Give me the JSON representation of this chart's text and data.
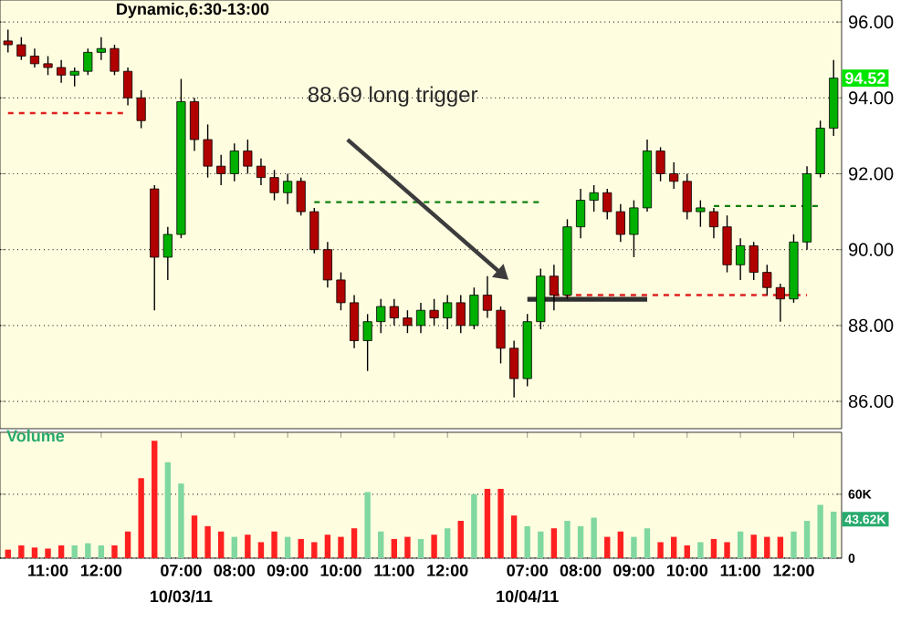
{
  "chart_data": [
    {
      "type": "candlestick",
      "title": "Dynamic,6:30-13:00",
      "categories": [
        null,
        null,
        null,
        null,
        null,
        null,
        null,
        null,
        null,
        null,
        null,
        null,
        null,
        null,
        null,
        null,
        null,
        null,
        null,
        null,
        null,
        null,
        null,
        null,
        null,
        null,
        null,
        null,
        null,
        null,
        null,
        null,
        null,
        null,
        null,
        null,
        null,
        null,
        null,
        null,
        null,
        null,
        null,
        null,
        null,
        null,
        null,
        null,
        null,
        null,
        null,
        null,
        null,
        null,
        null,
        null,
        null,
        null,
        null,
        null,
        null,
        null,
        null
      ],
      "ohlc": [
        [
          95.5,
          95.8,
          95.2,
          95.4
        ],
        [
          95.4,
          95.6,
          95.0,
          95.1
        ],
        [
          95.1,
          95.3,
          94.8,
          94.9
        ],
        [
          94.9,
          95.1,
          94.6,
          94.8
        ],
        [
          94.8,
          95.0,
          94.4,
          94.6
        ],
        [
          94.6,
          94.8,
          94.3,
          94.7
        ],
        [
          94.7,
          95.3,
          94.6,
          95.2
        ],
        [
          95.2,
          95.6,
          95.0,
          95.3
        ],
        [
          95.3,
          95.4,
          94.6,
          94.7
        ],
        [
          94.7,
          94.8,
          93.8,
          94.0
        ],
        [
          94.0,
          94.2,
          93.2,
          93.4
        ],
        [
          91.6,
          91.7,
          88.4,
          89.8
        ],
        [
          89.8,
          90.6,
          89.2,
          90.4
        ],
        [
          90.4,
          94.5,
          90.3,
          93.9
        ],
        [
          93.9,
          94.0,
          92.6,
          92.9
        ],
        [
          92.9,
          93.3,
          91.9,
          92.2
        ],
        [
          92.2,
          92.5,
          91.7,
          92.0
        ],
        [
          92.0,
          92.8,
          91.8,
          92.6
        ],
        [
          92.6,
          92.9,
          92.0,
          92.2
        ],
        [
          92.2,
          92.4,
          91.7,
          91.9
        ],
        [
          91.9,
          92.1,
          91.3,
          91.5
        ],
        [
          91.5,
          92.0,
          91.2,
          91.8
        ],
        [
          91.8,
          91.9,
          90.9,
          91.0
        ],
        [
          91.0,
          91.1,
          89.9,
          90.0
        ],
        [
          90.0,
          90.2,
          89.0,
          89.2
        ],
        [
          89.2,
          89.4,
          88.4,
          88.6
        ],
        [
          88.6,
          88.8,
          87.4,
          87.6
        ],
        [
          87.6,
          88.3,
          86.8,
          88.1
        ],
        [
          88.1,
          88.7,
          87.8,
          88.5
        ],
        [
          88.5,
          88.7,
          88.0,
          88.2
        ],
        [
          88.2,
          88.4,
          87.8,
          88.0
        ],
        [
          88.0,
          88.6,
          87.8,
          88.4
        ],
        [
          88.4,
          88.7,
          88.0,
          88.2
        ],
        [
          88.2,
          88.8,
          87.9,
          88.6
        ],
        [
          88.6,
          88.8,
          87.8,
          88.0
        ],
        [
          88.0,
          89.0,
          87.9,
          88.8
        ],
        [
          88.8,
          89.3,
          88.2,
          88.4
        ],
        [
          88.4,
          88.5,
          87.0,
          87.4
        ],
        [
          87.4,
          87.6,
          86.1,
          86.6
        ],
        [
          86.6,
          88.3,
          86.4,
          88.1
        ],
        [
          88.1,
          89.5,
          87.9,
          89.3
        ],
        [
          89.3,
          89.6,
          88.4,
          88.8
        ],
        [
          88.8,
          90.8,
          88.7,
          90.6
        ],
        [
          90.6,
          91.6,
          90.3,
          91.3
        ],
        [
          91.3,
          91.7,
          91.0,
          91.5
        ],
        [
          91.5,
          91.6,
          90.8,
          91.0
        ],
        [
          91.0,
          91.2,
          90.2,
          90.4
        ],
        [
          90.4,
          91.3,
          89.8,
          91.1
        ],
        [
          91.1,
          92.9,
          91.0,
          92.6
        ],
        [
          92.6,
          92.7,
          91.8,
          92.0
        ],
        [
          92.0,
          92.3,
          91.6,
          91.8
        ],
        [
          91.8,
          92.0,
          90.8,
          91.0
        ],
        [
          91.0,
          91.3,
          90.6,
          91.1
        ],
        [
          91.0,
          91.1,
          90.3,
          90.6
        ],
        [
          90.6,
          90.9,
          89.4,
          89.6
        ],
        [
          89.6,
          90.3,
          89.2,
          90.1
        ],
        [
          90.1,
          90.2,
          89.2,
          89.4
        ],
        [
          89.4,
          89.6,
          88.8,
          89.0
        ],
        [
          89.0,
          89.1,
          88.1,
          88.7
        ],
        [
          88.7,
          90.4,
          88.6,
          90.2
        ],
        [
          90.2,
          92.2,
          90.0,
          92.0
        ],
        [
          92.0,
          93.4,
          91.9,
          93.2
        ],
        [
          93.2,
          95.0,
          93.0,
          94.52
        ]
      ],
      "colors": [
        "#b00000",
        "#b00000",
        "#b00000",
        "#b00000",
        "#b00000",
        "#00b000",
        "#00b000",
        "#00b000",
        "#b00000",
        "#b00000",
        "#b00000",
        "#b00000",
        "#00b000",
        "#00b000",
        "#b00000",
        "#b00000",
        "#b00000",
        "#00b000",
        "#b00000",
        "#b00000",
        "#b00000",
        "#00b000",
        "#b00000",
        "#b00000",
        "#b00000",
        "#b00000",
        "#b00000",
        "#00b000",
        "#00b000",
        "#b00000",
        "#b00000",
        "#00b000",
        "#b00000",
        "#00b000",
        "#b00000",
        "#00b000",
        "#b00000",
        "#b00000",
        "#b00000",
        "#00b000",
        "#00b000",
        "#b00000",
        "#00b000",
        "#00b000",
        "#00b000",
        "#b00000",
        "#b00000",
        "#00b000",
        "#00b000",
        "#b00000",
        "#b00000",
        "#b00000",
        "#00b000",
        "#b00000",
        "#b00000",
        "#00b000",
        "#b00000",
        "#b00000",
        "#b00000",
        "#00b000",
        "#00b000",
        "#00b000",
        "#00b000"
      ],
      "series": [
        {
          "type": "line",
          "color": "#e02020",
          "line_style": "dashed",
          "values": [
            93.6,
            93.6,
            93.6,
            93.6,
            93.6,
            93.6,
            93.6,
            93.6,
            93.6,
            93.6,
            null,
            null,
            null,
            null,
            null,
            null,
            null,
            null,
            null,
            null,
            null,
            null,
            null,
            null,
            null,
            null,
            null,
            null,
            null,
            null,
            null,
            null,
            null,
            null,
            null,
            null,
            null,
            null,
            null,
            null,
            null,
            null,
            null,
            null,
            null,
            null,
            null,
            null,
            null,
            null,
            null,
            null,
            null,
            null,
            null,
            null,
            null,
            null,
            null,
            null,
            null,
            null,
            null
          ]
        },
        {
          "type": "line",
          "color": "#108010",
          "line_style": "dashed",
          "values": [
            null,
            null,
            null,
            null,
            null,
            null,
            null,
            null,
            null,
            null,
            null,
            null,
            null,
            null,
            null,
            null,
            null,
            null,
            null,
            null,
            null,
            null,
            null,
            91.25,
            91.25,
            91.25,
            91.25,
            91.25,
            91.25,
            91.25,
            91.25,
            91.25,
            91.25,
            91.25,
            91.25,
            91.25,
            91.25,
            91.25,
            91.25,
            91.25,
            91.25,
            null,
            null,
            null,
            null,
            null,
            null,
            null,
            null,
            null,
            null,
            null,
            null,
            null,
            null,
            null,
            null,
            null,
            null,
            null,
            null,
            null,
            null
          ]
        },
        {
          "type": "line",
          "color": "#e02020",
          "line_style": "dashed",
          "values": [
            null,
            null,
            null,
            null,
            null,
            null,
            null,
            null,
            null,
            null,
            null,
            null,
            null,
            null,
            null,
            null,
            null,
            null,
            null,
            null,
            null,
            null,
            null,
            null,
            null,
            null,
            null,
            null,
            null,
            null,
            null,
            null,
            null,
            null,
            null,
            null,
            null,
            null,
            null,
            null,
            null,
            88.8,
            88.8,
            88.8,
            88.8,
            88.8,
            88.8,
            88.8,
            88.8,
            88.8,
            88.8,
            88.8,
            88.8,
            88.8,
            88.8,
            88.8,
            88.8,
            88.8,
            88.8,
            88.8,
            88.8,
            null,
            null
          ]
        },
        {
          "type": "line",
          "color": "#108010",
          "line_style": "dashed",
          "values": [
            null,
            null,
            null,
            null,
            null,
            null,
            null,
            null,
            null,
            null,
            null,
            null,
            null,
            null,
            null,
            null,
            null,
            null,
            null,
            null,
            null,
            null,
            null,
            null,
            null,
            null,
            null,
            null,
            null,
            null,
            null,
            null,
            null,
            null,
            null,
            null,
            null,
            null,
            null,
            null,
            null,
            null,
            null,
            null,
            null,
            null,
            null,
            null,
            null,
            null,
            null,
            null,
            null,
            91.15,
            91.15,
            91.15,
            91.15,
            91.15,
            91.15,
            91.15,
            91.15,
            91.15,
            null
          ]
        },
        {
          "type": "line",
          "color": "#303030",
          "line_style": "solid",
          "values": [
            null,
            null,
            null,
            null,
            null,
            null,
            null,
            null,
            null,
            null,
            null,
            null,
            null,
            null,
            null,
            null,
            null,
            null,
            null,
            null,
            null,
            null,
            null,
            null,
            null,
            null,
            null,
            null,
            null,
            null,
            null,
            null,
            null,
            null,
            null,
            null,
            null,
            null,
            null,
            88.69,
            88.69,
            88.69,
            88.69,
            88.69,
            88.69,
            88.69,
            88.69,
            88.69,
            88.69,
            null,
            null,
            null,
            null,
            null,
            null,
            null,
            null,
            null,
            null,
            null,
            null,
            null,
            null
          ]
        }
      ],
      "ylim": [
        85.28,
        96.58
      ],
      "yticks": [
        {
          "value": 86,
          "label": "86.00"
        },
        {
          "value": 88,
          "label": "88.00"
        },
        {
          "value": 90,
          "label": "90.00"
        },
        {
          "value": 92,
          "label": "92.00"
        },
        {
          "value": 94,
          "label": "94.00"
        },
        {
          "value": 96,
          "label": "96.00"
        }
      ],
      "grid": "y",
      "tick_labels": "y",
      "annotations": [
        "88.69 long trigger",
        {
          "text": "94.52",
          "y": 94.52
        }
      ]
    },
    {
      "type": "bar",
      "title": "Volume",
      "categories": [
        null,
        null,
        null,
        "11:00",
        null,
        null,
        null,
        "12:00",
        null,
        null,
        null,
        null,
        null,
        "07:00",
        null,
        null,
        null,
        "08:00",
        null,
        null,
        null,
        "09:00",
        null,
        null,
        null,
        "10:00",
        null,
        null,
        null,
        "11:00",
        null,
        null,
        null,
        "12:00",
        null,
        null,
        null,
        null,
        null,
        "07:00",
        null,
        null,
        null,
        "08:00",
        null,
        null,
        null,
        "09:00",
        null,
        null,
        null,
        "10:00",
        null,
        null,
        null,
        "11:00",
        null,
        null,
        null,
        "12:00",
        null,
        null,
        null
      ],
      "values": [
        8000,
        12000,
        10000,
        9000,
        12000,
        12000,
        14000,
        12000,
        12000,
        25000,
        75000,
        110000,
        90000,
        70000,
        40000,
        30000,
        25000,
        20000,
        22000,
        15000,
        25000,
        20000,
        18000,
        15000,
        22000,
        20000,
        28000,
        62000,
        25000,
        18000,
        20000,
        18000,
        22000,
        28000,
        35000,
        60000,
        65000,
        65000,
        40000,
        30000,
        25000,
        28000,
        35000,
        30000,
        38000,
        20000,
        25000,
        20000,
        28000,
        15000,
        20000,
        12000,
        15000,
        18000,
        15000,
        25000,
        22000,
        20000,
        20000,
        25000,
        35000,
        50000,
        43620
      ],
      "colors": [
        "#ff2020",
        "#ff2020",
        "#ff2020",
        "#ff2020",
        "#ff2020",
        "#80d8a0",
        "#80d8a0",
        "#80d8a0",
        "#ff2020",
        "#ff2020",
        "#ff2020",
        "#ff2020",
        "#80d8a0",
        "#80d8a0",
        "#ff2020",
        "#ff2020",
        "#ff2020",
        "#80d8a0",
        "#ff2020",
        "#ff2020",
        "#ff2020",
        "#80d8a0",
        "#ff2020",
        "#ff2020",
        "#ff2020",
        "#ff2020",
        "#ff2020",
        "#80d8a0",
        "#80d8a0",
        "#ff2020",
        "#ff2020",
        "#80d8a0",
        "#ff2020",
        "#80d8a0",
        "#ff2020",
        "#80d8a0",
        "#ff2020",
        "#ff2020",
        "#ff2020",
        "#80d8a0",
        "#80d8a0",
        "#ff2020",
        "#80d8a0",
        "#80d8a0",
        "#80d8a0",
        "#ff2020",
        "#ff2020",
        "#80d8a0",
        "#80d8a0",
        "#ff2020",
        "#ff2020",
        "#ff2020",
        "#80d8a0",
        "#ff2020",
        "#ff2020",
        "#80d8a0",
        "#ff2020",
        "#ff2020",
        "#ff2020",
        "#80d8a0",
        "#80d8a0",
        "#80d8a0",
        "#80d8a0"
      ],
      "ylim": [
        0,
        118000
      ],
      "yticks": [
        0,
        {
          "value": 60000,
          "label": "60K"
        }
      ],
      "grid": "y",
      "annotations": [
        "10/03/11",
        "10/04/11",
        "43.62K"
      ]
    }
  ]
}
